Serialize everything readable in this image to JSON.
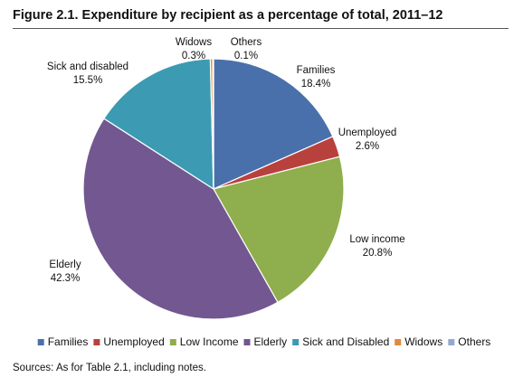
{
  "figure": {
    "title": "Figure 2.1. Expenditure by recipient as a percentage of total, 2011–12",
    "sources": "Sources: As for Table 2.1, including notes."
  },
  "chart_data": {
    "type": "pie",
    "title": "Figure 2.1. Expenditure by recipient as a percentage of total, 2011–12",
    "slices": [
      {
        "label": "Families",
        "value": 18.4,
        "value_label": "18.4%",
        "color": "#4a70ab",
        "legend": "Families"
      },
      {
        "label": "Unemployed",
        "value": 2.6,
        "value_label": "2.6%",
        "color": "#b8413e",
        "legend": "Unemployed"
      },
      {
        "label": "Low income",
        "value": 20.8,
        "value_label": "20.8%",
        "color": "#8fae4d",
        "legend": "Low Income"
      },
      {
        "label": "Elderly",
        "value": 42.3,
        "value_label": "42.3%",
        "color": "#725790",
        "legend": "Elderly"
      },
      {
        "label": "Sick and disabled",
        "value": 15.5,
        "value_label": "15.5%",
        "color": "#3c9ab2",
        "legend": "Sick and Disabled"
      },
      {
        "label": "Widows",
        "value": 0.3,
        "value_label": "0.3%",
        "color": "#e08a3c",
        "legend": "Widows"
      },
      {
        "label": "Others",
        "value": 0.1,
        "value_label": "0.1%",
        "color": "#93a9cf",
        "legend": "Others"
      }
    ],
    "legend_position": "bottom",
    "start_angle": "12 o'clock",
    "direction": "clockwise"
  }
}
